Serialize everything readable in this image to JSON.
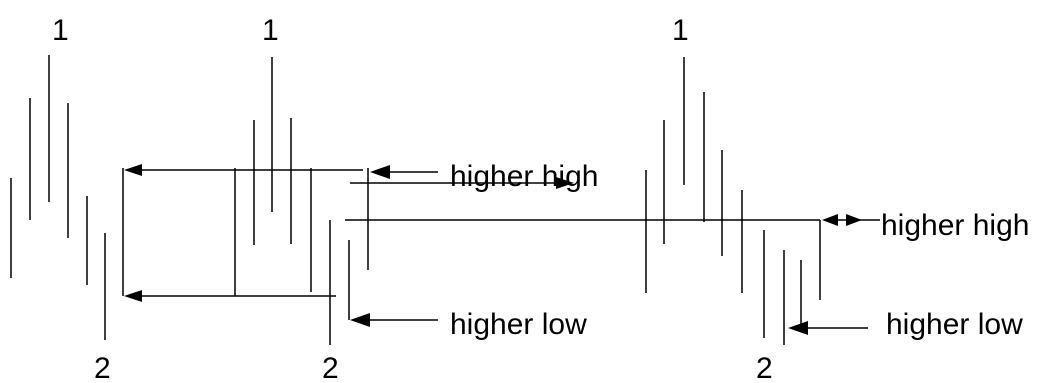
{
  "labels": {
    "swing_1_a": "1",
    "swing_1_b": "1",
    "swing_1_c": "1",
    "swing_2_a": "2",
    "swing_2_b": "2",
    "swing_2_c": "2",
    "higher_high_a": "higher high",
    "higher_low_a": "higher low",
    "higher_high_b": "higher high",
    "higher_low_b": "higher low"
  }
}
